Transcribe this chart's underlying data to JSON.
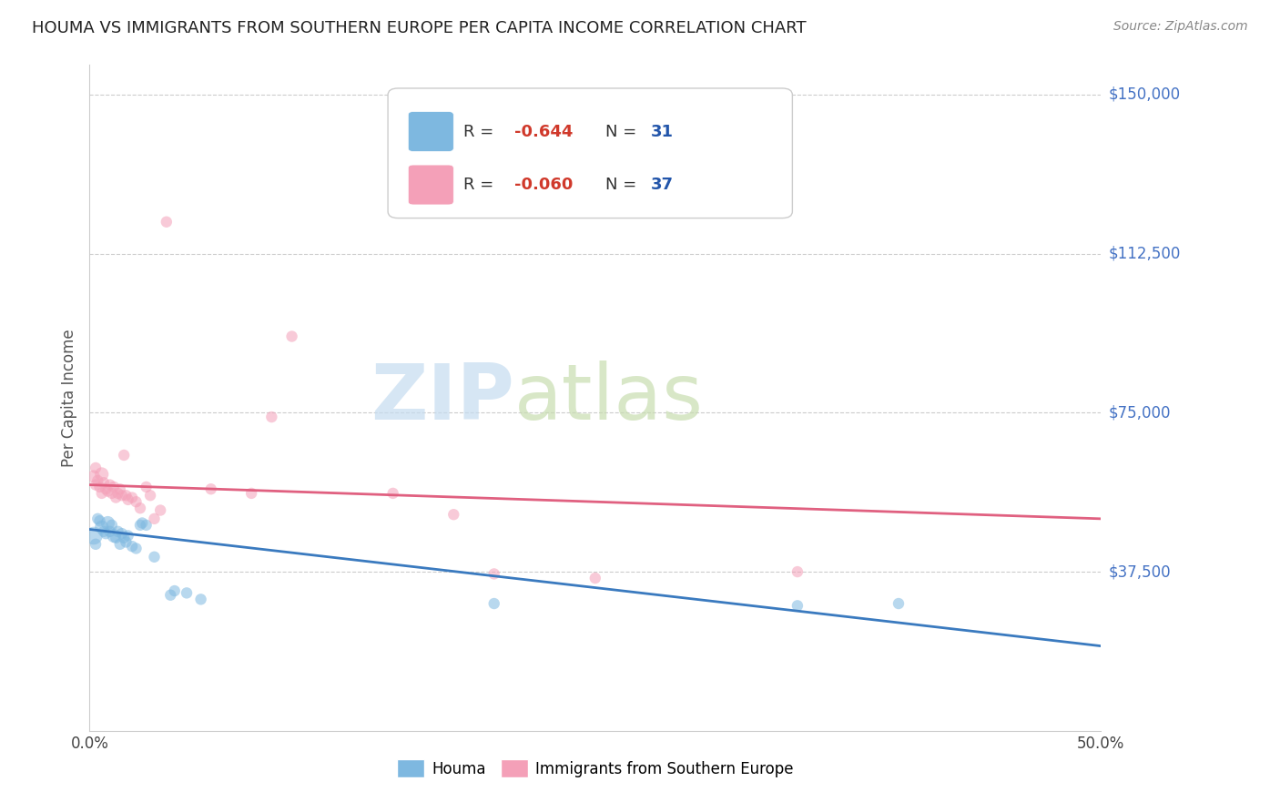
{
  "title": "HOUMA VS IMMIGRANTS FROM SOUTHERN EUROPE PER CAPITA INCOME CORRELATION CHART",
  "source": "Source: ZipAtlas.com",
  "ylabel": "Per Capita Income",
  "xlim": [
    0.0,
    0.5
  ],
  "ylim": [
    0,
    157000
  ],
  "houma_color": "#7eb8e0",
  "imm_color": "#f4a0b8",
  "houma_line_color": "#3a7abf",
  "imm_line_color": "#e06080",
  "legend_box_color": "#cccccc",
  "watermark_zip_color": "#c5d8f0",
  "watermark_atlas_color": "#dde8c0",
  "grid_color": "#cccccc",
  "bg_color": "#ffffff",
  "title_color": "#222222",
  "ylabel_color": "#555555",
  "yticklabel_color": "#4472c4",
  "source_color": "#888888",
  "houma_scatter": [
    [
      0.002,
      46000
    ],
    [
      0.003,
      44000
    ],
    [
      0.004,
      50000
    ],
    [
      0.005,
      49500
    ],
    [
      0.006,
      48000
    ],
    [
      0.007,
      47000
    ],
    [
      0.008,
      46500
    ],
    [
      0.009,
      49000
    ],
    [
      0.01,
      47000
    ],
    [
      0.011,
      48500
    ],
    [
      0.012,
      46000
    ],
    [
      0.013,
      45500
    ],
    [
      0.014,
      47000
    ],
    [
      0.015,
      44000
    ],
    [
      0.016,
      46500
    ],
    [
      0.017,
      45500
    ],
    [
      0.018,
      44500
    ],
    [
      0.019,
      46000
    ],
    [
      0.021,
      43500
    ],
    [
      0.023,
      43000
    ],
    [
      0.025,
      48500
    ],
    [
      0.026,
      49000
    ],
    [
      0.028,
      48500
    ],
    [
      0.032,
      41000
    ],
    [
      0.04,
      32000
    ],
    [
      0.042,
      33000
    ],
    [
      0.048,
      32500
    ],
    [
      0.055,
      31000
    ],
    [
      0.2,
      30000
    ],
    [
      0.35,
      29500
    ],
    [
      0.4,
      30000
    ]
  ],
  "houma_sizes": [
    200,
    80,
    80,
    80,
    120,
    80,
    80,
    120,
    80,
    80,
    120,
    80,
    80,
    80,
    80,
    80,
    80,
    80,
    80,
    80,
    80,
    80,
    80,
    80,
    80,
    80,
    80,
    80,
    80,
    80,
    80
  ],
  "imm_scatter": [
    [
      0.002,
      60000
    ],
    [
      0.003,
      62000
    ],
    [
      0.003,
      58000
    ],
    [
      0.004,
      59000
    ],
    [
      0.005,
      57500
    ],
    [
      0.006,
      60500
    ],
    [
      0.006,
      56000
    ],
    [
      0.007,
      58500
    ],
    [
      0.008,
      57000
    ],
    [
      0.009,
      56500
    ],
    [
      0.01,
      58000
    ],
    [
      0.011,
      56000
    ],
    [
      0.012,
      57500
    ],
    [
      0.013,
      55000
    ],
    [
      0.014,
      56000
    ],
    [
      0.015,
      57000
    ],
    [
      0.016,
      55500
    ],
    [
      0.017,
      65000
    ],
    [
      0.018,
      55500
    ],
    [
      0.019,
      54500
    ],
    [
      0.021,
      55000
    ],
    [
      0.023,
      54000
    ],
    [
      0.025,
      52500
    ],
    [
      0.028,
      57500
    ],
    [
      0.03,
      55500
    ],
    [
      0.032,
      50000
    ],
    [
      0.035,
      52000
    ],
    [
      0.038,
      120000
    ],
    [
      0.06,
      57000
    ],
    [
      0.08,
      56000
    ],
    [
      0.09,
      74000
    ],
    [
      0.1,
      93000
    ],
    [
      0.15,
      56000
    ],
    [
      0.18,
      51000
    ],
    [
      0.2,
      37000
    ],
    [
      0.25,
      36000
    ],
    [
      0.35,
      37500
    ]
  ],
  "imm_sizes": [
    100,
    80,
    80,
    80,
    80,
    120,
    80,
    80,
    80,
    80,
    80,
    80,
    80,
    80,
    80,
    80,
    80,
    80,
    80,
    80,
    80,
    80,
    80,
    80,
    80,
    80,
    80,
    80,
    80,
    80,
    80,
    80,
    80,
    80,
    80,
    80,
    80
  ],
  "houma_reg": [
    47500,
    20000
  ],
  "imm_reg": [
    58000,
    50000
  ]
}
